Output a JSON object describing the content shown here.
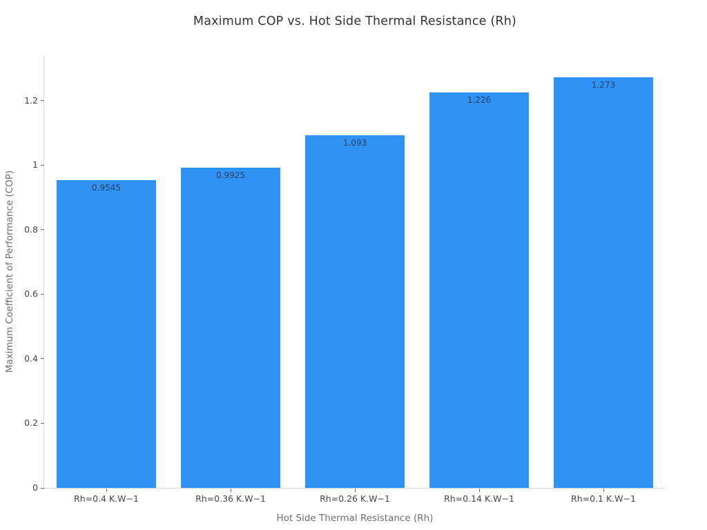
{
  "chart_data": {
    "type": "bar",
    "title": "Maximum COP vs. Hot Side Thermal Resistance (Rh)",
    "xlabel": "Hot Side Thermal Resistance (Rh)",
    "ylabel": "Maximum Coefficient of Performance (COP)",
    "categories": [
      "Rh=0.4 K.W−1",
      "Rh=0.36 K.W−1",
      "Rh=0.26 K.W−1",
      "Rh=0.14 K.W−1",
      "Rh=0.1 K.W−1"
    ],
    "values": [
      0.9545,
      0.9925,
      1.093,
      1.226,
      1.273
    ],
    "value_labels": [
      "0.9545",
      "0.9925",
      "1.093",
      "1.226",
      "1.273"
    ],
    "y_ticks": [
      0,
      0.2,
      0.4,
      0.6,
      0.8,
      1,
      1.2
    ],
    "y_tick_labels": [
      "0",
      "0.2",
      "0.4",
      "0.6",
      "0.8",
      "1",
      "1.2"
    ],
    "ylim": [
      0,
      1.341
    ],
    "grid": false,
    "legend_position": "none",
    "bar_color": "#2f93f6",
    "value_label_color": "#2a3f5f",
    "axis_line_color": "#d9d9d9",
    "tick_label_color": "#444444",
    "axis_title_color": "#6e6e6e"
  }
}
